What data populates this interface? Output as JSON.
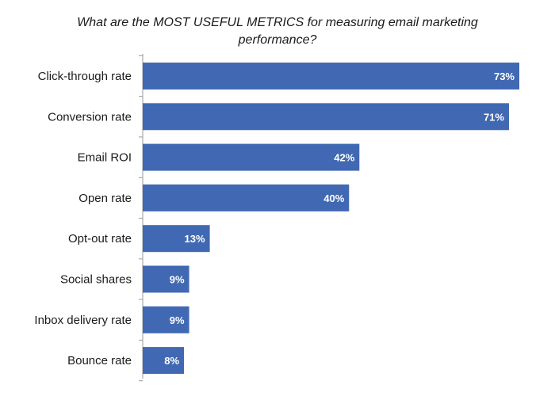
{
  "chart_data": {
    "type": "bar",
    "orientation": "horizontal",
    "title_line1": "What are the MOST USEFUL METRICS for measuring email marketing",
    "title_line2": "performance?",
    "categories": [
      "Click-through rate",
      "Conversion rate",
      "Email ROI",
      "Open rate",
      "Opt-out rate",
      "Social shares",
      "Inbox delivery rate",
      "Bounce rate"
    ],
    "values": [
      73,
      71,
      42,
      40,
      13,
      9,
      9,
      8
    ],
    "value_labels": [
      "73%",
      "71%",
      "42%",
      "40%",
      "13%",
      "9%",
      "9%",
      "8%"
    ],
    "xlim": [
      0,
      73
    ],
    "grid": false,
    "bar_color": "#4169b3",
    "label_color": "#ffffff"
  }
}
